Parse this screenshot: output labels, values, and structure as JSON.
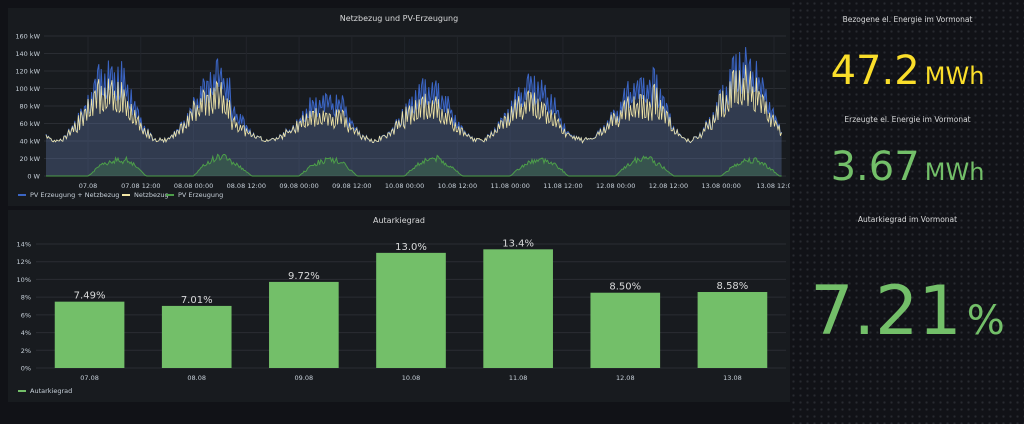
{
  "chart_data": [
    {
      "type": "area",
      "title": "Netzbezug und PV-Erzeugung",
      "ylim": [
        0,
        160
      ],
      "y_ticks": [
        "0 W",
        "20 kW",
        "40 kW",
        "60 kW",
        "80 kW",
        "100 kW",
        "120 kW",
        "140 kW",
        "160 kW"
      ],
      "x_ticks": [
        "07.08",
        "07.08 12:00",
        "08.08 00:00",
        "08.08 12:00",
        "09.08 00:00",
        "09.08 12:00",
        "10.08 00:00",
        "10.08 12:00",
        "11.08 00:00",
        "11.08 12:00",
        "12.08 00:00",
        "12.08 12:00",
        "13.08 00:00",
        "13.08 12:0"
      ],
      "series": [
        {
          "name": "PV Erzeugung + Netzbezug",
          "color": "#3b65c4",
          "daily_peak": [
            130,
            120,
            85,
            105,
            112,
            105,
            140
          ]
        },
        {
          "name": "Netzbezug",
          "color": "#f2e6a5",
          "daily_peak": [
            118,
            110,
            80,
            98,
            100,
            95,
            128
          ]
        },
        {
          "name": "PV Erzeugung",
          "color": "#4d9e4a",
          "daily_peak": [
            18,
            22,
            18,
            20,
            18,
            20,
            18
          ]
        }
      ],
      "grid": true,
      "legend": "bottom-left"
    },
    {
      "type": "bar",
      "title": "Autarkiegrad",
      "categories": [
        "07.08",
        "08.08",
        "09.08",
        "10.08",
        "11.08",
        "12.08",
        "13.08"
      ],
      "values": [
        7.49,
        7.01,
        9.72,
        13.0,
        13.4,
        8.5,
        8.58
      ],
      "value_labels": [
        "7.49%",
        "7.01%",
        "9.72%",
        "13.0%",
        "13.4%",
        "8.50%",
        "8.58%"
      ],
      "y_ticks": [
        "0%",
        "2%",
        "4%",
        "6%",
        "8%",
        "10%",
        "12%",
        "14%"
      ],
      "ylim": [
        0,
        14
      ],
      "series": [
        {
          "name": "Autarkiegrad",
          "color": "#73bf69"
        }
      ],
      "grid": true,
      "legend": "bottom-left"
    }
  ],
  "stats": [
    {
      "title": "Bezogene el. Energie im Vormonat",
      "value": "47.2",
      "unit": "MWh",
      "color": "#fade2a"
    },
    {
      "title": "Erzeugte el. Energie im Vormonat",
      "value": "3.67",
      "unit": "MWh",
      "color": "#73bf69"
    },
    {
      "title": "Autarkiegrad im Vormonat",
      "value": "7.21",
      "unit": "%",
      "color": "#73bf69"
    }
  ]
}
